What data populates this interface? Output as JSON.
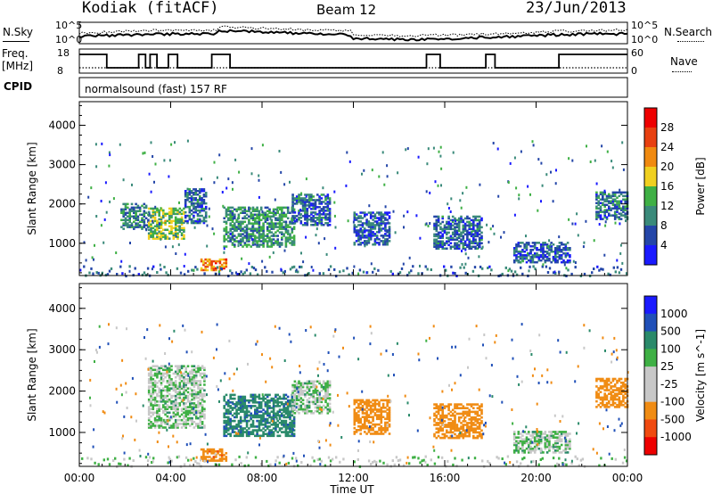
{
  "header": {
    "site": "Kodiak (fitACF)",
    "beam": "Beam 12",
    "date": "23/Jun/2013"
  },
  "top_panels": {
    "nsky_label": "N.Sky",
    "nsearch_label": "N.Search",
    "noise_ticks": [
      "10^5",
      "10^0"
    ],
    "freq_label_1": "Freq.",
    "freq_label_2": "[MHz]",
    "freq_ticks": [
      "18",
      "8"
    ],
    "nave_label": "Nave",
    "nave_ticks": [
      "60",
      "0"
    ],
    "cpid_label": "CPID",
    "cpid_text": "normalsound (fast) 157 RF"
  },
  "colors": {
    "power": [
      "#1a1aff",
      "#2446a8",
      "#3a8a7a",
      "#3fb045",
      "#f0d020",
      "#f08a10",
      "#e84010",
      "#ee0000"
    ],
    "velocity": [
      "#ee0000",
      "#f04a10",
      "#f08c14",
      "#c8c8c8",
      "#c8c8c8",
      "#3fb045",
      "#2a8a6a",
      "#2050b8",
      "#1a1aff"
    ]
  },
  "chart_data": [
    {
      "type": "heatmap",
      "title": "Power",
      "xlabel": "",
      "ylabel": "Slant Range [km]",
      "x_ticks": [],
      "y_ticks": [
        "1000",
        "2000",
        "3000",
        "4000"
      ],
      "ylim": [
        180,
        4600
      ],
      "colorbar_label": "Power [dB]",
      "colorbar_ticks": [
        "4",
        "8",
        "12",
        "16",
        "20",
        "24",
        "28"
      ],
      "clim": [
        0,
        30
      ],
      "regions": [
        {
          "t0": 1.8,
          "t1": 3.0,
          "r0": 1350,
          "r1": 2000,
          "v": 9
        },
        {
          "t0": 3.0,
          "t1": 4.6,
          "r0": 1100,
          "r1": 1900,
          "v": 14
        },
        {
          "t0": 4.6,
          "t1": 5.5,
          "r0": 1500,
          "r1": 2400,
          "v": 7
        },
        {
          "t0": 5.3,
          "t1": 6.4,
          "r0": 300,
          "r1": 600,
          "v": 22
        },
        {
          "t0": 6.3,
          "t1": 9.4,
          "r0": 900,
          "r1": 1900,
          "v": 10
        },
        {
          "t0": 9.3,
          "t1": 11.0,
          "r0": 1450,
          "r1": 2250,
          "v": 7
        },
        {
          "t0": 12.0,
          "t1": 13.6,
          "r0": 950,
          "r1": 1800,
          "v": 6
        },
        {
          "t0": 15.5,
          "t1": 17.6,
          "r0": 850,
          "r1": 1700,
          "v": 7
        },
        {
          "t0": 19.0,
          "t1": 21.5,
          "r0": 500,
          "r1": 1000,
          "v": 6
        },
        {
          "t0": 22.6,
          "t1": 24.0,
          "r0": 1600,
          "r1": 2300,
          "v": 8
        }
      ]
    },
    {
      "type": "heatmap",
      "title": "Velocity",
      "xlabel": "Time UT",
      "ylabel": "Slant Range [km]",
      "x_ticks": [
        "00:00",
        "04:00",
        "08:00",
        "12:00",
        "16:00",
        "20:00",
        "00:00"
      ],
      "xlim": [
        0,
        24
      ],
      "y_ticks": [
        "1000",
        "2000",
        "3000",
        "4000"
      ],
      "ylim": [
        180,
        4600
      ],
      "colorbar_label": "Velocity [m s^-1]",
      "colorbar_ticks": [
        "1000",
        "500",
        "100",
        "25",
        "-25",
        "-100",
        "-500",
        "-1000"
      ],
      "regions": [
        {
          "t0": 3.0,
          "t1": 5.5,
          "r0": 1100,
          "r1": 2600,
          "v": 0
        },
        {
          "t0": 5.3,
          "t1": 6.4,
          "r0": 300,
          "r1": 600,
          "v": -400
        },
        {
          "t0": 6.3,
          "t1": 9.4,
          "r0": 900,
          "r1": 1900,
          "v": 80
        },
        {
          "t0": 9.3,
          "t1": 11.0,
          "r0": 1450,
          "r1": 2250,
          "v": 0
        },
        {
          "t0": 12.0,
          "t1": 13.6,
          "r0": 950,
          "r1": 1800,
          "v": -300
        },
        {
          "t0": 15.5,
          "t1": 17.6,
          "r0": 850,
          "r1": 1700,
          "v": -300
        },
        {
          "t0": 19.0,
          "t1": 21.5,
          "r0": 500,
          "r1": 1000,
          "v": 0
        },
        {
          "t0": 22.6,
          "t1": 24.0,
          "r0": 1600,
          "r1": 2300,
          "v": -200
        }
      ]
    }
  ]
}
